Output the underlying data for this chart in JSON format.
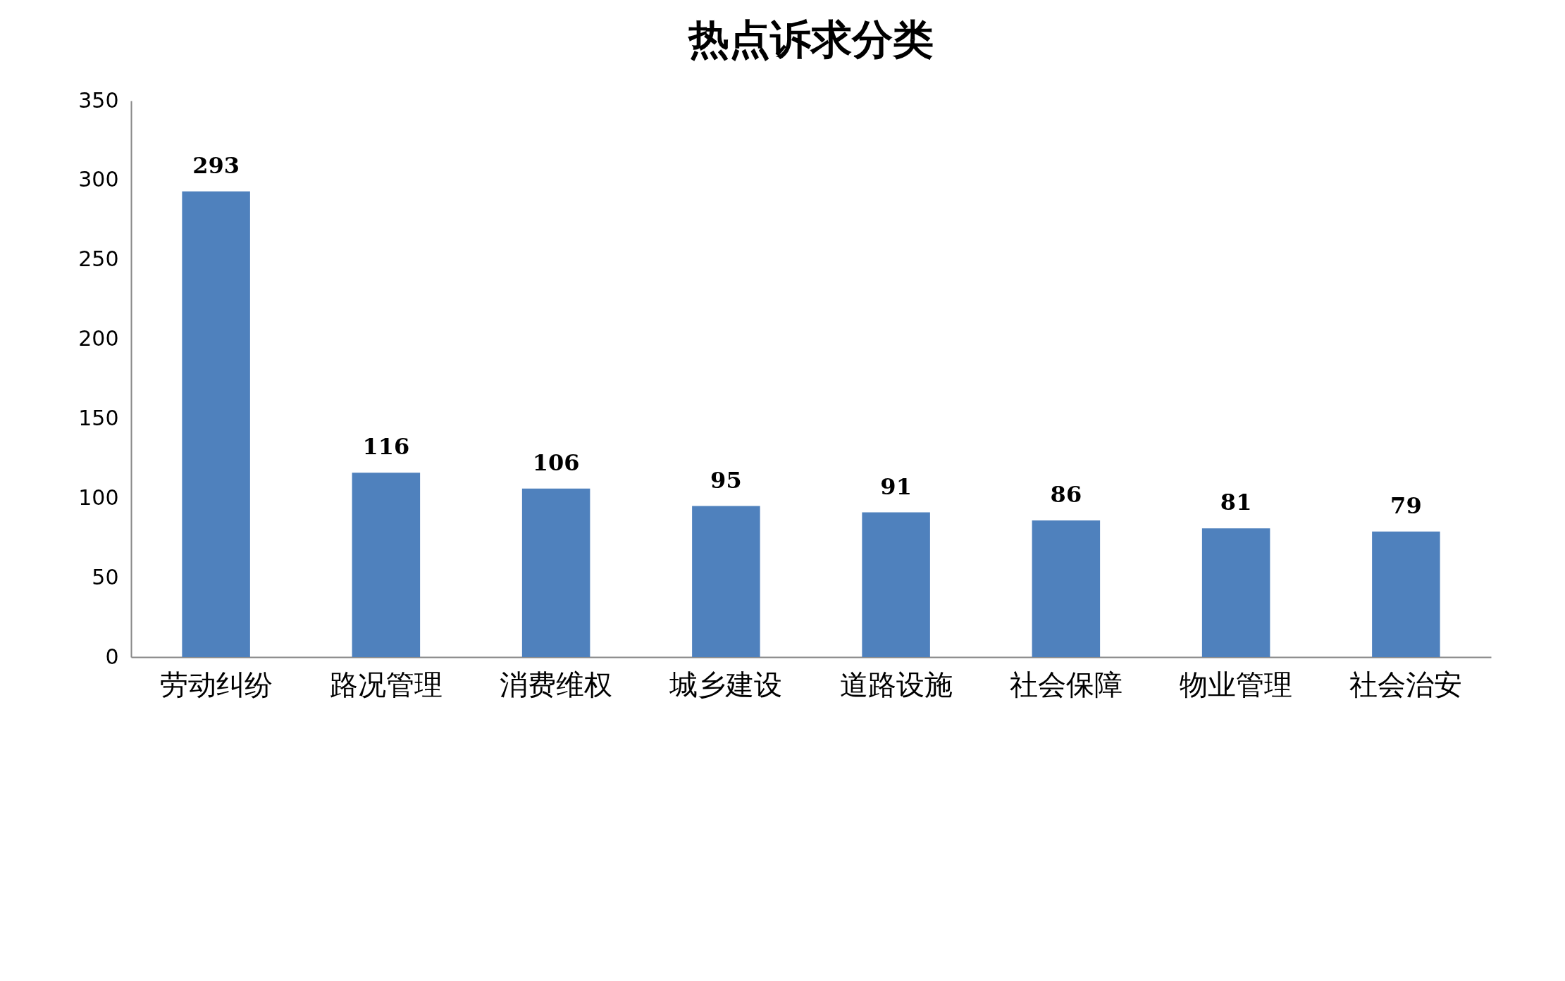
{
  "chart_data": {
    "type": "bar",
    "title": "热点诉求分类",
    "categories": [
      "劳动纠纷",
      "路况管理",
      "消费维权",
      "城乡建设",
      "道路设施",
      "社会保障",
      "物业管理",
      "社会治安"
    ],
    "values": [
      293,
      116,
      106,
      95,
      91,
      86,
      81,
      79
    ],
    "color": "#4f81bd",
    "ylim": [
      0,
      350
    ],
    "yticks": [
      0,
      50,
      100,
      150,
      200,
      250,
      300,
      350
    ],
    "grid": false,
    "data_labels": true
  }
}
